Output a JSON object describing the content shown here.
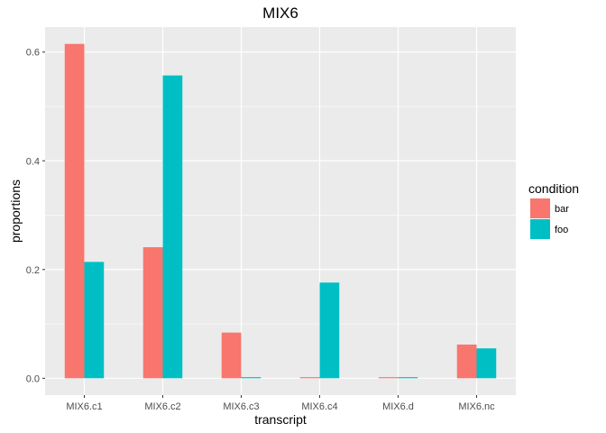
{
  "chart_data": {
    "type": "bar",
    "title": "MIX6",
    "xlabel": "transcript",
    "ylabel": "proportions",
    "categories": [
      "MIX6.c1",
      "MIX6.c2",
      "MIX6.c3",
      "MIX6.c4",
      "MIX6.d",
      "MIX6.nc"
    ],
    "series": [
      {
        "name": "bar",
        "color": "#F8766D",
        "values": [
          0.615,
          0.241,
          0.084,
          0.002,
          0.002,
          0.062
        ]
      },
      {
        "name": "foo",
        "color": "#00BFC4",
        "values": [
          0.214,
          0.557,
          0.002,
          0.176,
          0.002,
          0.055
        ]
      }
    ],
    "ylim": [
      -0.031,
      0.646
    ],
    "yticks": [
      0.0,
      0.2,
      0.4,
      0.6
    ],
    "ytick_labels": [
      "0.0",
      "0.2",
      "0.4",
      "0.6"
    ],
    "grid": true,
    "legend": {
      "title": "condition",
      "position": "right"
    },
    "panel_color": "#EBEBEB",
    "grid_color": "#FFFFFF"
  }
}
